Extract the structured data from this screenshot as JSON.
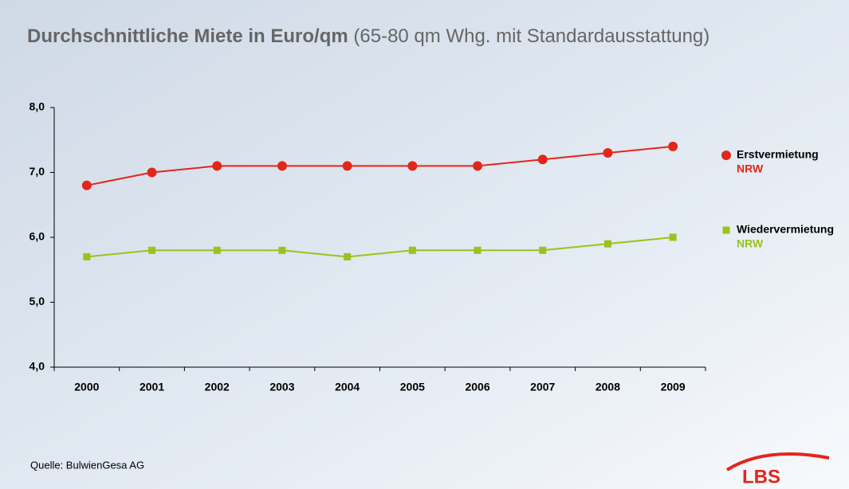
{
  "chart_data": {
    "type": "line",
    "title": "Durchschnittliche Miete in Euro/qm",
    "subtitle": "(65-80 qm Whg. mit Standardausstattung)",
    "categories": [
      "2000",
      "2001",
      "2002",
      "2003",
      "2004",
      "2005",
      "2006",
      "2007",
      "2008",
      "2009"
    ],
    "series": [
      {
        "name": "Erstvermietung",
        "sublabel": "NRW",
        "color": "#e3261a",
        "marker": "circle",
        "values": [
          6.8,
          7.0,
          7.1,
          7.1,
          7.1,
          7.1,
          7.1,
          7.2,
          7.3,
          7.4
        ]
      },
      {
        "name": "Wiedervermietung",
        "sublabel": "NRW",
        "color": "#99c31c",
        "marker": "square",
        "values": [
          5.7,
          5.8,
          5.8,
          5.8,
          5.7,
          5.8,
          5.8,
          5.8,
          5.9,
          6.0
        ]
      }
    ],
    "ylim": [
      4,
      8
    ],
    "yticks": [
      {
        "value": 4,
        "label": "4,0"
      },
      {
        "value": 5,
        "label": "5,0"
      },
      {
        "value": 6,
        "label": "6,0"
      },
      {
        "value": 7,
        "label": "7,0"
      },
      {
        "value": 8,
        "label": "8,0"
      }
    ],
    "grid": false,
    "legend": "right",
    "source": "Quelle: BulwienGesa AG",
    "logo": "LBS"
  }
}
